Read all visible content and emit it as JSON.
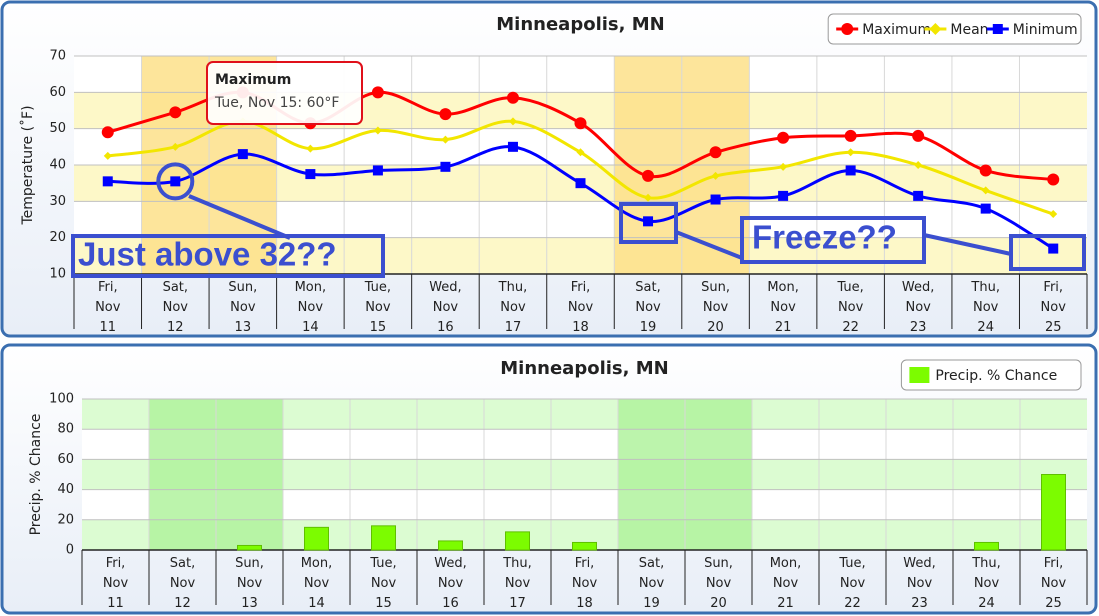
{
  "chart_data": [
    {
      "type": "line",
      "title": "Minneapolis, MN",
      "y_label": "Temperature (˚F)",
      "categories": [
        "Fri, Nov 11",
        "Sat, Nov 12",
        "Sun, Nov 13",
        "Mon, Nov 14",
        "Tue, Nov 15",
        "Wed, Nov 16",
        "Thu, Nov 17",
        "Fri, Nov 18",
        "Sat, Nov 19",
        "Sun, Nov 20",
        "Mon, Nov 21",
        "Tue, Nov 22",
        "Wed, Nov 23",
        "Thu, Nov 24",
        "Fri, Nov 25"
      ],
      "series": [
        {
          "name": "Maximum",
          "color": "#ff0000",
          "values": [
            49,
            54.5,
            60,
            51.5,
            60,
            54,
            58.5,
            51.5,
            37,
            43.5,
            47.5,
            48,
            48,
            38.5,
            36
          ]
        },
        {
          "name": "Mean",
          "color": "#ffff00",
          "values": [
            42.5,
            45,
            52,
            44.5,
            49.5,
            47,
            52,
            43.5,
            31,
            37,
            39.5,
            43.5,
            40,
            33,
            26.5
          ]
        },
        {
          "name": "Minimum",
          "color": "#0000ff",
          "values": [
            35.5,
            35.5,
            43,
            37.5,
            38.5,
            39.5,
            45,
            35,
            24.5,
            30.5,
            31.5,
            38.5,
            31.5,
            28,
            17
          ]
        }
      ],
      "ylim": [
        10,
        70
      ],
      "yticks": [
        10,
        20,
        30,
        40,
        50,
        60,
        70
      ],
      "grid": true,
      "legend": "top-right",
      "tooltip": {
        "title": "Maximum",
        "text": "Tue, Nov 15: 60°F"
      },
      "annotations": [
        "Just above 32??",
        "Freeze??"
      ]
    },
    {
      "type": "bar",
      "title": "Minneapolis, MN",
      "y_label": "Precip. % Chance",
      "categories": [
        "Fri, Nov 11",
        "Sat, Nov 12",
        "Sun, Nov 13",
        "Mon, Nov 14",
        "Tue, Nov 15",
        "Wed, Nov 16",
        "Thu, Nov 17",
        "Fri, Nov 18",
        "Sat, Nov 19",
        "Sun, Nov 20",
        "Mon, Nov 21",
        "Tue, Nov 22",
        "Wed, Nov 23",
        "Thu, Nov 24",
        "Fri, Nov 25"
      ],
      "series": [
        {
          "name": "Precip. % Chance",
          "color": "#7cfc00",
          "values": [
            0,
            0,
            3,
            15,
            16,
            6,
            12,
            5,
            0,
            0,
            0,
            0,
            0,
            5,
            50
          ]
        }
      ],
      "ylim": [
        0,
        100
      ],
      "yticks": [
        0,
        20,
        40,
        60,
        80,
        100
      ],
      "grid": true,
      "legend": "top-right"
    }
  ]
}
